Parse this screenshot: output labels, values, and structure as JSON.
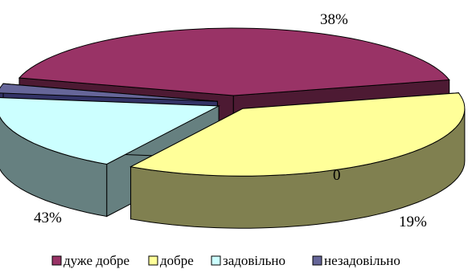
{
  "chart_data": {
    "type": "pie",
    "style": "3d-exploded",
    "categories": [
      "дуже добре",
      "добре",
      "задовільно",
      "незадовільно"
    ],
    "values": [
      43,
      38,
      19,
      0
    ],
    "data_labels": [
      "43%",
      "38%",
      "19%",
      "0"
    ],
    "colors": [
      "#993366",
      "#FFFF99",
      "#CCFFFF",
      "#666699"
    ],
    "side_colors": [
      "#4D1A33",
      "#808050",
      "#668080",
      "#333366"
    ],
    "legend_position": "bottom",
    "title": ""
  }
}
